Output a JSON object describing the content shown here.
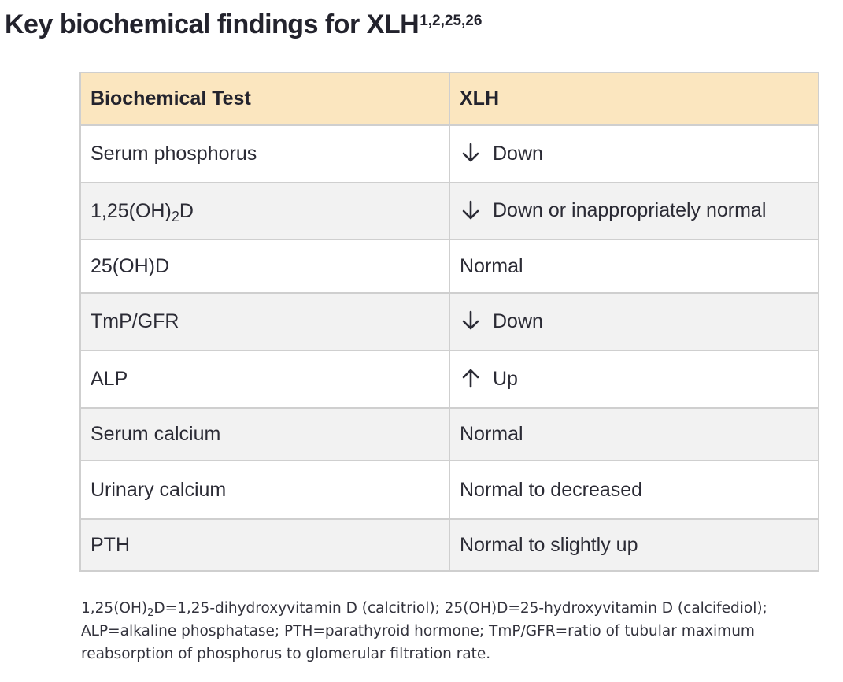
{
  "title": {
    "text": "Key biochemical findings for XLH",
    "refs": "1,2,25,26"
  },
  "table": {
    "headers": [
      "Biochemical Test",
      "XLH"
    ],
    "rows": [
      {
        "test": "Serum phosphorus",
        "arrow": "down",
        "arrow_icon": "arrow-down-icon",
        "result": "Down"
      },
      {
        "test_prefix": "1,25(OH)",
        "test_sub": "2",
        "test_suffix": "D",
        "arrow": "down",
        "arrow_icon": "arrow-down-icon",
        "result": "Down or inappropriately normal"
      },
      {
        "test": "25(OH)D",
        "arrow": "",
        "result": "Normal"
      },
      {
        "test": "TmP/GFR",
        "arrow": "down",
        "arrow_icon": "arrow-down-icon",
        "result": "Down"
      },
      {
        "test": "ALP",
        "arrow": "up",
        "arrow_icon": "arrow-up-icon",
        "result": "Up"
      },
      {
        "test": "Serum calcium",
        "arrow": "",
        "result": "Normal"
      },
      {
        "test": "Urinary calcium",
        "arrow": "",
        "result": "Normal to decreased"
      },
      {
        "test": "PTH",
        "arrow": "",
        "result": "Normal to slightly up"
      }
    ]
  },
  "footnote": {
    "line1_prefix": "1,25(OH)",
    "line1_sub": "2",
    "line1_rest": "D=1,25-dihydroxyvitamin D (calcitriol); 25(OH)D=25-hydroxyvitamin D (calcifediol);",
    "line2": "ALP=alkaline phosphatase; PTH=parathyroid hormone; TmP/GFR=ratio of tubular maximum",
    "line3": "reabsorption of phosphorus to glomerular filtration rate."
  },
  "colors": {
    "header_bg": "#fbe6bf",
    "stripe_bg": "#f2f2f2",
    "border": "#cfcfcf",
    "text": "#2b2b35"
  }
}
